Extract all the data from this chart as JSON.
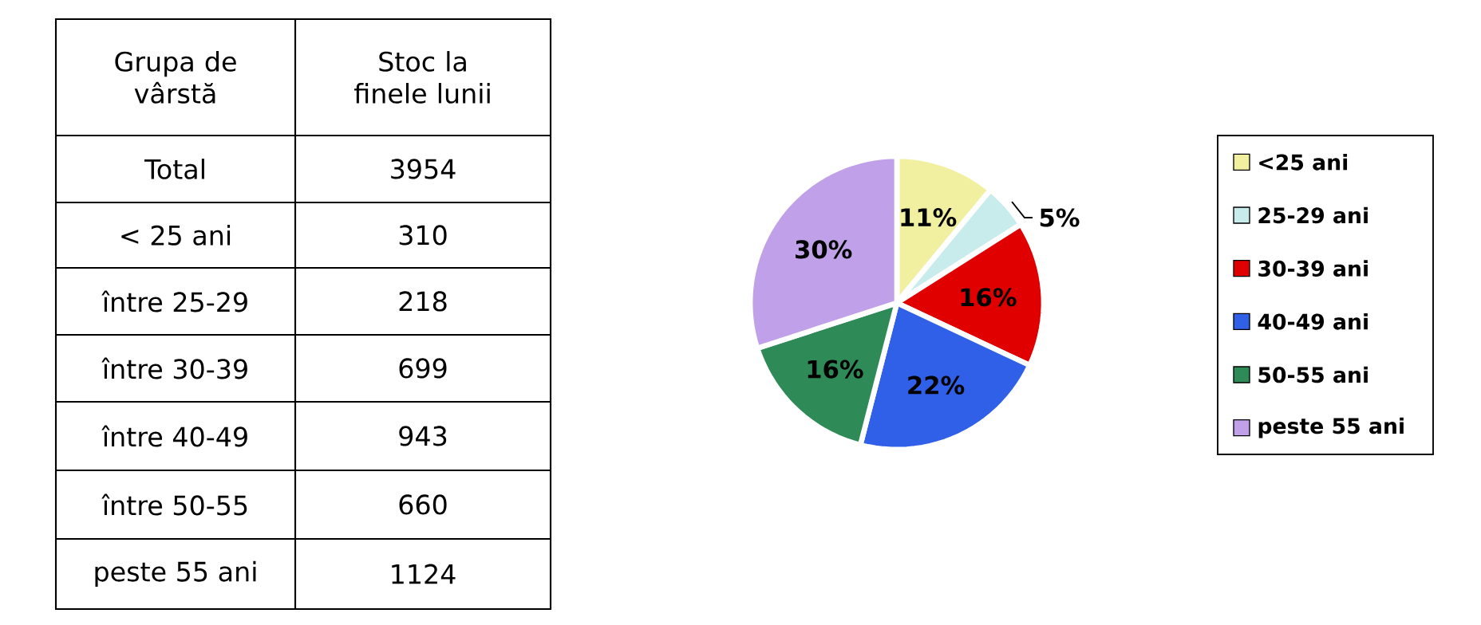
{
  "chart_data": [
    {
      "type": "other",
      "xlabel": "Grupa de vârstă",
      "ylabel": "Stoc la finele lunii",
      "categories": [
        "Total",
        "< 25 ani",
        "între 25-29",
        "între 30-39",
        "între 40-49",
        "între 50-55",
        "peste 55 ani"
      ],
      "values": [
        3954,
        310,
        218,
        699,
        943,
        660,
        1124
      ],
      "data_labels": true
    },
    {
      "type": "pie",
      "categories": [
        "<25 ani",
        "25-29 ani",
        "30-39 ani",
        "40-49 ani",
        "50-55 ani",
        "peste 55 ani"
      ],
      "values": [
        11,
        5,
        16,
        22,
        16,
        30
      ],
      "colors": [
        "#f0f0a0",
        "#c8ecec",
        "#e00000",
        "#3060e8",
        "#2e8b57",
        "#c0a0e8"
      ],
      "value_labels": [
        "11%",
        "5%",
        "16%",
        "22%",
        "16%",
        "30%"
      ],
      "legend": "right"
    }
  ]
}
